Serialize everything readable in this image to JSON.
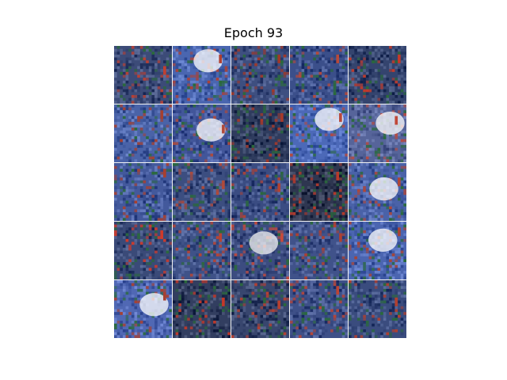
{
  "figure": {
    "title": "Epoch 93"
  },
  "image_grid": {
    "rows": 5,
    "columns": 5,
    "description_kind": "generated-samples",
    "tiles": [
      {
        "base": "#3c4b78",
        "accent": "#c04030",
        "highlight": "#e8eef8",
        "cloud": false
      },
      {
        "base": "#4a66b0",
        "accent": "#b04030",
        "highlight": "#ffffff",
        "cloud": true
      },
      {
        "base": "#3e4f80",
        "accent": "#a03828",
        "highlight": "#dfe8f5",
        "cloud": false
      },
      {
        "base": "#3b4f8a",
        "accent": "#b84a3a",
        "highlight": "#e6ecf8",
        "cloud": false
      },
      {
        "base": "#34446e",
        "accent": "#c43a2a",
        "highlight": "#dde6f5",
        "cloud": false
      },
      {
        "base": "#4a63a8",
        "accent": "#a54030",
        "highlight": "#e6eef8",
        "cloud": false
      },
      {
        "base": "#42569a",
        "accent": "#b04a3a",
        "highlight": "#ffffff",
        "cloud": true
      },
      {
        "base": "#2f3c5e",
        "accent": "#a83a2a",
        "highlight": "#d8e0ee",
        "cloud": false
      },
      {
        "base": "#4c69b8",
        "accent": "#b84838",
        "highlight": "#ffffff",
        "cloud": true
      },
      {
        "base": "#56649a",
        "accent": "#c04838",
        "highlight": "#ffffff",
        "cloud": true
      },
      {
        "base": "#43599c",
        "accent": "#a84030",
        "highlight": "#e4ecf6",
        "cloud": false
      },
      {
        "base": "#3c4e80",
        "accent": "#b04a3a",
        "highlight": "#e8eef8",
        "cloud": false
      },
      {
        "base": "#3a4c82",
        "accent": "#b24232",
        "highlight": "#e6ecf6",
        "cloud": false
      },
      {
        "base": "#2e3650",
        "accent": "#b83a2a",
        "highlight": "#d4dae8",
        "cloud": false
      },
      {
        "base": "#4a62a8",
        "accent": "#b04636",
        "highlight": "#ffffff",
        "cloud": true
      },
      {
        "base": "#3a4a78",
        "accent": "#d03a2a",
        "highlight": "#e0e8f4",
        "cloud": false
      },
      {
        "base": "#3f5288",
        "accent": "#b84434",
        "highlight": "#e8eef8",
        "cloud": false
      },
      {
        "base": "#3c4c80",
        "accent": "#c84a3a",
        "highlight": "#f2f2f2",
        "cloud": true
      },
      {
        "base": "#40528a",
        "accent": "#b04030",
        "highlight": "#e6ecf8",
        "cloud": false
      },
      {
        "base": "#4b65b0",
        "accent": "#a84434",
        "highlight": "#ffffff",
        "cloud": true
      },
      {
        "base": "#5068b4",
        "accent": "#a84030",
        "highlight": "#ffffff",
        "cloud": true
      },
      {
        "base": "#323e60",
        "accent": "#c43828",
        "highlight": "#d8e0ee",
        "cloud": false
      },
      {
        "base": "#38466e",
        "accent": "#b84030",
        "highlight": "#e2e8f4",
        "cloud": false
      },
      {
        "base": "#3e5088",
        "accent": "#bc4434",
        "highlight": "#e8eef8",
        "cloud": false
      },
      {
        "base": "#3a4c7e",
        "accent": "#b04030",
        "highlight": "#e4eaf6",
        "cloud": false
      }
    ]
  }
}
